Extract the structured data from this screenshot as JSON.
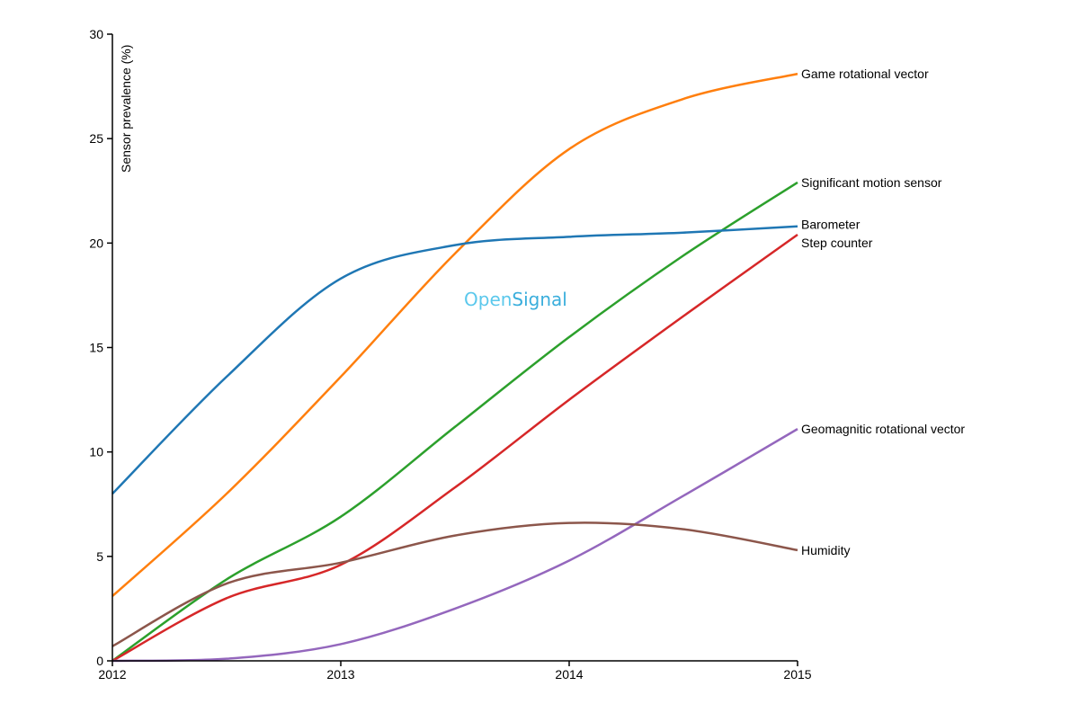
{
  "chart_data": {
    "type": "line",
    "title": "",
    "xlabel": "",
    "ylabel": "Sensor prevalence (%)",
    "xlim": [
      2012,
      2015
    ],
    "ylim": [
      0,
      30
    ],
    "x_ticks": [
      "2012",
      "2013",
      "2014",
      "2015"
    ],
    "y_ticks": [
      "0",
      "5",
      "10",
      "15",
      "20",
      "25",
      "30"
    ],
    "grid": false,
    "legend_position": "inline labels at line ends (right)",
    "x": [
      2012,
      2012.5,
      2013,
      2013.5,
      2014,
      2014.5,
      2015
    ],
    "series": [
      {
        "name": "Game rotational vector",
        "color": "#ff7f0e",
        "values": [
          3.1,
          8.0,
          13.6,
          19.5,
          24.5,
          26.9,
          28.1
        ]
      },
      {
        "name": "Significant motion sensor",
        "color": "#2ca02c",
        "values": [
          0,
          3.9,
          6.9,
          11.2,
          15.5,
          19.4,
          22.9
        ]
      },
      {
        "name": "Barometer",
        "color": "#1f77b4",
        "values": [
          8.0,
          13.6,
          18.3,
          19.9,
          20.3,
          20.5,
          20.8
        ]
      },
      {
        "name": "Step counter",
        "color": "#d62728",
        "values": [
          0,
          3.0,
          4.6,
          8.3,
          12.5,
          16.5,
          20.4
        ]
      },
      {
        "name": "Geomagnitic rotational vector",
        "color": "#9467bd",
        "values": [
          0,
          0.1,
          0.8,
          2.5,
          4.8,
          7.9,
          11.1
        ]
      },
      {
        "name": "Humidity",
        "color": "#8c564b",
        "values": [
          0.7,
          3.7,
          4.7,
          6.0,
          6.6,
          6.3,
          5.3
        ]
      }
    ],
    "annotations": [
      "OpenSignal"
    ]
  },
  "watermark": {
    "part1": "Open",
    "part2": "Signal",
    "color1": "#5bc8ec",
    "color2": "#3aaedc"
  },
  "label_offsets": {
    "Barometer": -2,
    "Step counter": 9
  }
}
